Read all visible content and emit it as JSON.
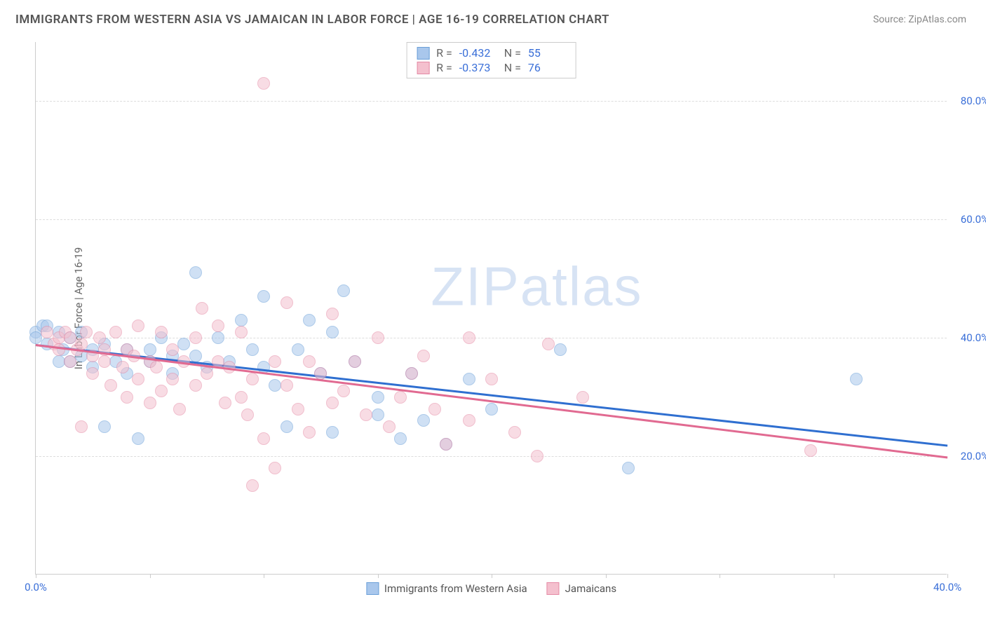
{
  "title": "IMMIGRANTS FROM WESTERN ASIA VS JAMAICAN IN LABOR FORCE | AGE 16-19 CORRELATION CHART",
  "source": "Source: ZipAtlas.com",
  "watermark": "ZIPatlas",
  "chart": {
    "type": "scatter",
    "y_axis_title": "In Labor Force | Age 16-19",
    "xlim": [
      0,
      40
    ],
    "ylim": [
      0,
      90
    ],
    "x_ticks": [
      0,
      5,
      10,
      15,
      20,
      25,
      30,
      35,
      40
    ],
    "x_tick_labels": {
      "0": "0.0%",
      "40": "40.0%"
    },
    "y_ticks": [
      20,
      40,
      60,
      80
    ],
    "y_tick_labels": {
      "20": "20.0%",
      "40": "40.0%",
      "60": "60.0%",
      "80": "80.0%"
    },
    "background_color": "#ffffff",
    "grid_color": "#dddddd",
    "axis_color": "#cccccc",
    "tick_label_color": "#3a6fd8",
    "point_radius": 9,
    "point_opacity": 0.55,
    "series": [
      {
        "name": "Immigrants from Western Asia",
        "fill_color": "#a9c7ec",
        "stroke_color": "#6a9fd8",
        "line_color": "#2f6fd0",
        "R": "-0.432",
        "N": "55",
        "trend": {
          "x1": 0,
          "y1": 39,
          "x2": 40,
          "y2": 22
        },
        "points": [
          [
            0,
            41
          ],
          [
            0,
            40
          ],
          [
            0.3,
            42
          ],
          [
            0.5,
            42
          ],
          [
            0.5,
            39
          ],
          [
            1,
            36
          ],
          [
            1,
            41
          ],
          [
            1.2,
            38
          ],
          [
            1.5,
            40
          ],
          [
            1.5,
            36
          ],
          [
            2,
            41
          ],
          [
            2,
            37
          ],
          [
            2.5,
            38
          ],
          [
            2.5,
            35
          ],
          [
            3,
            39
          ],
          [
            3,
            25
          ],
          [
            3.5,
            36
          ],
          [
            4,
            38
          ],
          [
            4,
            34
          ],
          [
            4.5,
            23
          ],
          [
            5,
            36
          ],
          [
            5,
            38
          ],
          [
            5.5,
            40
          ],
          [
            6,
            37
          ],
          [
            6,
            34
          ],
          [
            6.5,
            39
          ],
          [
            7,
            37
          ],
          [
            7,
            51
          ],
          [
            7.5,
            35
          ],
          [
            8,
            40
          ],
          [
            8.5,
            36
          ],
          [
            9,
            43
          ],
          [
            9.5,
            38
          ],
          [
            10,
            35
          ],
          [
            10,
            47
          ],
          [
            10.5,
            32
          ],
          [
            11,
            25
          ],
          [
            11.5,
            38
          ],
          [
            12,
            43
          ],
          [
            12.5,
            34
          ],
          [
            13,
            41
          ],
          [
            13,
            24
          ],
          [
            13.5,
            48
          ],
          [
            14,
            36
          ],
          [
            15,
            30
          ],
          [
            15,
            27
          ],
          [
            16,
            23
          ],
          [
            16.5,
            34
          ],
          [
            17,
            26
          ],
          [
            18,
            22
          ],
          [
            19,
            33
          ],
          [
            20,
            28
          ],
          [
            23,
            38
          ],
          [
            26,
            18
          ],
          [
            36,
            33
          ]
        ]
      },
      {
        "name": "Jamaicans",
        "fill_color": "#f4c0ce",
        "stroke_color": "#e58aa5",
        "line_color": "#e16a91",
        "R": "-0.373",
        "N": "76",
        "trend": {
          "x1": 0,
          "y1": 39,
          "x2": 40,
          "y2": 20
        },
        "points": [
          [
            0.5,
            41
          ],
          [
            0.8,
            39
          ],
          [
            1,
            40
          ],
          [
            1,
            38
          ],
          [
            1.3,
            41
          ],
          [
            1.5,
            36
          ],
          [
            1.5,
            40
          ],
          [
            1.8,
            38
          ],
          [
            2,
            25
          ],
          [
            2,
            39
          ],
          [
            2.2,
            41
          ],
          [
            2.5,
            37
          ],
          [
            2.5,
            34
          ],
          [
            2.8,
            40
          ],
          [
            3,
            38
          ],
          [
            3,
            36
          ],
          [
            3.3,
            32
          ],
          [
            3.5,
            41
          ],
          [
            3.8,
            35
          ],
          [
            4,
            38
          ],
          [
            4,
            30
          ],
          [
            4.3,
            37
          ],
          [
            4.5,
            33
          ],
          [
            4.5,
            42
          ],
          [
            5,
            36
          ],
          [
            5,
            29
          ],
          [
            5.3,
            35
          ],
          [
            5.5,
            41
          ],
          [
            5.5,
            31
          ],
          [
            6,
            33
          ],
          [
            6,
            38
          ],
          [
            6.3,
            28
          ],
          [
            6.5,
            36
          ],
          [
            7,
            40
          ],
          [
            7,
            32
          ],
          [
            7.3,
            45
          ],
          [
            7.5,
            34
          ],
          [
            8,
            36
          ],
          [
            8,
            42
          ],
          [
            8.3,
            29
          ],
          [
            8.5,
            35
          ],
          [
            9,
            30
          ],
          [
            9,
            41
          ],
          [
            9.3,
            27
          ],
          [
            9.5,
            33
          ],
          [
            9.5,
            15
          ],
          [
            10,
            83
          ],
          [
            10,
            23
          ],
          [
            10.5,
            36
          ],
          [
            10.5,
            18
          ],
          [
            11,
            32
          ],
          [
            11,
            46
          ],
          [
            11.5,
            28
          ],
          [
            12,
            36
          ],
          [
            12,
            24
          ],
          [
            12.5,
            34
          ],
          [
            13,
            29
          ],
          [
            13,
            44
          ],
          [
            13.5,
            31
          ],
          [
            14,
            36
          ],
          [
            14.5,
            27
          ],
          [
            15,
            40
          ],
          [
            15.5,
            25
          ],
          [
            16,
            30
          ],
          [
            16.5,
            34
          ],
          [
            17,
            37
          ],
          [
            17.5,
            28
          ],
          [
            18,
            22
          ],
          [
            19,
            40
          ],
          [
            19,
            26
          ],
          [
            20,
            33
          ],
          [
            21,
            24
          ],
          [
            22,
            20
          ],
          [
            22.5,
            39
          ],
          [
            24,
            30
          ],
          [
            34,
            21
          ]
        ]
      }
    ],
    "stat_legend_labels": {
      "R": "R =",
      "N": "N ="
    },
    "bottom_legend": [
      {
        "label": "Immigrants from Western Asia",
        "fill": "#a9c7ec",
        "stroke": "#6a9fd8"
      },
      {
        "label": "Jamaicans",
        "fill": "#f4c0ce",
        "stroke": "#e58aa5"
      }
    ]
  }
}
